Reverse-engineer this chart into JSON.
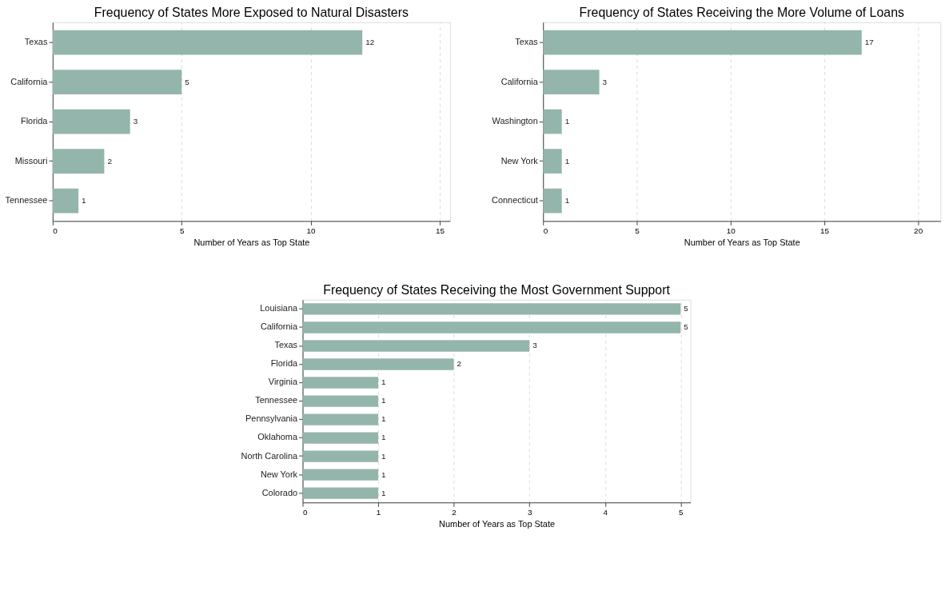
{
  "chart_data": [
    {
      "type": "bar",
      "orientation": "horizontal",
      "title": "Frequency of States More Exposed to Natural Disasters",
      "xlabel": "Number of Years as Top State",
      "categories": [
        "Texas",
        "California",
        "Florida",
        "Missouri",
        "Tennessee"
      ],
      "values": [
        12,
        5,
        3,
        2,
        1
      ],
      "color": "#94b5ac",
      "xlim": [
        0,
        15.4
      ],
      "xticks": [
        0,
        5,
        10,
        15
      ],
      "grid": "x",
      "data_labels": true
    },
    {
      "type": "bar",
      "orientation": "horizontal",
      "title": "Frequency of States Receiving the More Volume of Loans",
      "xlabel": "Number of Years as Top State",
      "categories": [
        "Texas",
        "California",
        "Washington",
        "New York",
        "Connecticut"
      ],
      "values": [
        17,
        3,
        1,
        1,
        1
      ],
      "color": "#94b5ac",
      "xlim": [
        0,
        21.2
      ],
      "xticks": [
        0,
        5,
        10,
        15,
        20
      ],
      "grid": "x",
      "data_labels": true
    },
    {
      "type": "bar",
      "orientation": "horizontal",
      "title": "Frequency of States Receiving the Most Government Support",
      "xlabel": "Number of Years as Top State",
      "categories": [
        "Louisiana",
        "California",
        "Texas",
        "Florida",
        "Virginia",
        "Tennessee",
        "Pennsylvania",
        "Oklahoma",
        "North Carolina",
        "New York",
        "Colorado"
      ],
      "values": [
        5,
        5,
        3,
        2,
        1,
        1,
        1,
        1,
        1,
        1,
        1
      ],
      "color": "#94b5ac",
      "xlim": [
        0,
        5.13
      ],
      "xticks": [
        0,
        1,
        2,
        3,
        4,
        5
      ],
      "grid": "x",
      "data_labels": true
    }
  ]
}
